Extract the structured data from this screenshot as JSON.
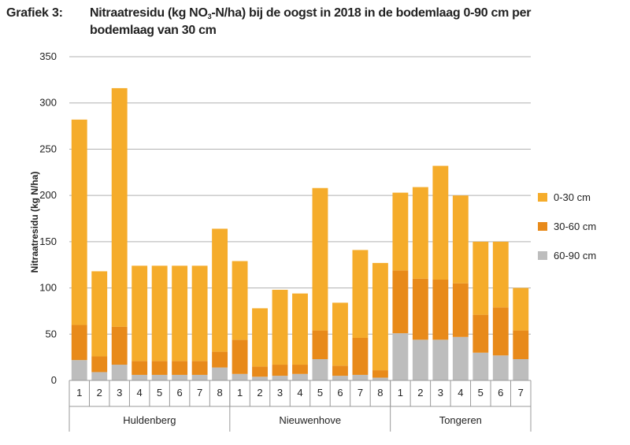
{
  "figure": {
    "label": "Grafiek 3:",
    "title_part1": "Nitraatresidu (kg NO",
    "title_sub": "3",
    "title_part2": "-N/ha) bij de oogst in 2018 in de bodemlaag 0-90 cm per",
    "title_line2": "bodemlaag van 30 cm"
  },
  "chart_data": {
    "type": "bar",
    "stacked": true,
    "ylabel": "Nitraatresidu (kg N/ha)",
    "ylim": [
      0,
      350
    ],
    "yticks": [
      0,
      50,
      100,
      150,
      200,
      250,
      300,
      350
    ],
    "grid": "horizontal",
    "legend_position": "right",
    "groups": [
      {
        "name": "Huldenberg",
        "categories": [
          "1",
          "2",
          "3",
          "4",
          "5",
          "6",
          "7",
          "8"
        ]
      },
      {
        "name": "Nieuwenhove",
        "categories": [
          "1",
          "2",
          "3",
          "4",
          "5",
          "6",
          "7",
          "8"
        ]
      },
      {
        "name": "Tongeren",
        "categories": [
          "1",
          "2",
          "3",
          "4",
          "5",
          "6",
          "7"
        ]
      }
    ],
    "series": [
      {
        "name": "60-90 cm",
        "color": "#bdbdbd",
        "values": [
          22,
          9,
          17,
          6,
          6,
          6,
          6,
          14,
          7,
          4,
          5,
          7,
          23,
          5,
          6,
          3,
          51,
          44,
          44,
          47,
          30,
          27,
          23
        ]
      },
      {
        "name": "30-60 cm",
        "color": "#e88a1a",
        "values": [
          38,
          17,
          41,
          15,
          15,
          15,
          15,
          17,
          37,
          11,
          12,
          10,
          31,
          11,
          40,
          8,
          68,
          66,
          65,
          58,
          41,
          52,
          31
        ]
      },
      {
        "name": "0-30 cm",
        "color": "#f5ac2b",
        "values": [
          222,
          92,
          258,
          103,
          103,
          103,
          103,
          133,
          85,
          63,
          81,
          77,
          154,
          68,
          95,
          116,
          84,
          99,
          123,
          95,
          79,
          71,
          46
        ]
      }
    ]
  }
}
